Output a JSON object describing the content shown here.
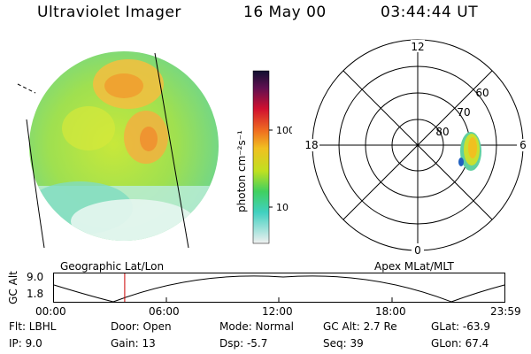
{
  "header": {
    "instrument": "Ultraviolet Imager",
    "date": "16 May 00",
    "time": "03:44:44 UT"
  },
  "colorbar": {
    "unit_label": "photon cm⁻²s⁻¹",
    "ticks": [
      "100",
      "10"
    ]
  },
  "polar_plot": {
    "mlt_labels": [
      "12",
      "18",
      "6",
      "0"
    ],
    "lat_labels": [
      "60",
      "70",
      "80"
    ]
  },
  "panels": {
    "left_caption": "Geographic Lat/Lon",
    "right_caption": "Apex MLat/MLT"
  },
  "altitude_plot": {
    "ylabel": "GC Alt",
    "yticks": [
      "9.0",
      "1.8"
    ],
    "time_ticks": [
      "00:00",
      "06:00",
      "12:00",
      "18:00",
      "23:59"
    ],
    "current_time_fraction": 0.157
  },
  "info": {
    "flt": "Flt: LBHL",
    "ip": "IP: 9.0",
    "door": "Door: Open",
    "gain": "Gain: 13",
    "mode": "Mode: Normal",
    "dsp": "Dsp:  -5.7",
    "gcalt": "GC Alt: 2.7 Re",
    "seq": "Seq: 39",
    "glat": "GLat: -63.9",
    "glon": "GLon: 67.4"
  },
  "colors": {
    "current_time_marker": "#cc0000"
  }
}
